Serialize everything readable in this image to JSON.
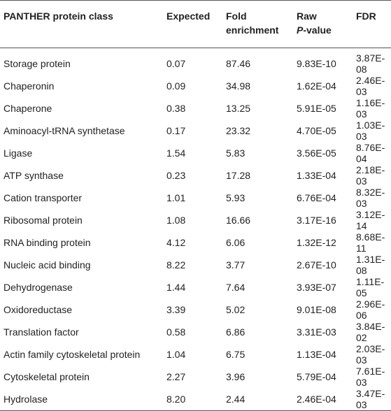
{
  "table": {
    "header": [
      "PANTHER protein class",
      "Expected",
      "Fold enrichment",
      [
        "Raw",
        "P",
        "-value"
      ],
      "FDR"
    ],
    "rows": [
      [
        "Storage protein",
        "0.07",
        "87.46",
        "9.83E-10",
        "3.87E-08"
      ],
      [
        "Chaperonin",
        "0.09",
        "34.98",
        "1.62E-04",
        "2.46E-03"
      ],
      [
        "Chaperone",
        "0.38",
        "13.25",
        "5.91E-05",
        "1.16E-03"
      ],
      [
        "Aminoacyl-tRNA synthetase",
        "0.17",
        "23.32",
        "4.70E-05",
        "1.03E-03"
      ],
      [
        "Ligase",
        "1.54",
        "5.83",
        "3.56E-05",
        "8.76E-04"
      ],
      [
        "ATP synthase",
        "0.23",
        "17.28",
        "1.33E-04",
        "2.18E-03"
      ],
      [
        "Cation transporter",
        "1.01",
        "5.93",
        "6.76E-04",
        "8.32E-03"
      ],
      [
        "Ribosomal protein",
        "1.08",
        "16.66",
        "3.17E-16",
        "3.12E-14"
      ],
      [
        "RNA binding protein",
        "4.12",
        "6.06",
        "1.32E-12",
        "8.68E-11"
      ],
      [
        "Nucleic acid binding",
        "8.22",
        "3.77",
        "2.67E-10",
        "1.31E-08"
      ],
      [
        "Dehydrogenase",
        "1.44",
        "7.64",
        "3.93E-07",
        "1.11E-05"
      ],
      [
        "Oxidoreductase",
        "3.39",
        "5.02",
        "9.01E-08",
        "2.96E-06"
      ],
      [
        "Translation factor",
        "0.58",
        "6.86",
        "3.31E-03",
        "3.84E-02"
      ],
      [
        "Actin family cytoskeletal protein",
        "1.04",
        "6.75",
        "1.13E-04",
        "2.03E-03"
      ],
      [
        "Cytoskeletal protein",
        "2.27",
        "3.96",
        "5.79E-04",
        "7.61E-03"
      ],
      [
        "Hydrolase",
        "8.20",
        "2.44",
        "2.46E-04",
        "3.47E-03"
      ]
    ]
  }
}
